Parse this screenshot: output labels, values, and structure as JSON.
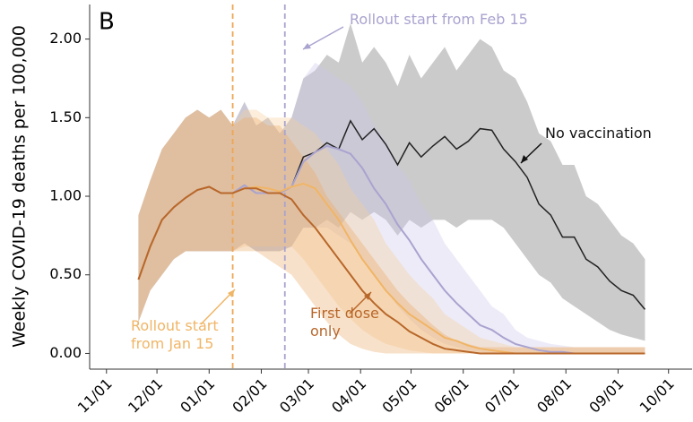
{
  "chart_data": {
    "type": "line",
    "title": "B",
    "y_label": "Weekly COVID-19 deaths per 100,000",
    "x": [
      "11/20",
      "11/27",
      "12/04",
      "12/11",
      "12/18",
      "12/25",
      "01/01",
      "01/08",
      "01/15",
      "01/22",
      "01/29",
      "02/05",
      "02/12",
      "02/19",
      "02/26",
      "03/05",
      "03/12",
      "03/19",
      "03/26",
      "04/02",
      "04/09",
      "04/16",
      "04/23",
      "04/30",
      "05/07",
      "05/14",
      "05/21",
      "05/28",
      "06/04",
      "06/11",
      "06/18",
      "06/25",
      "07/02",
      "07/09",
      "07/16",
      "07/23",
      "07/30",
      "08/06",
      "08/13",
      "08/20",
      "08/27",
      "09/03",
      "09/10",
      "09/17"
    ],
    "xlim": [
      "10/22",
      "10/15"
    ],
    "xticks": [
      "11/01",
      "12/01",
      "01/01",
      "02/01",
      "03/01",
      "04/01",
      "05/01",
      "06/01",
      "07/01",
      "08/01",
      "09/01",
      "10/01"
    ],
    "ylim": [
      -0.1,
      2.22
    ],
    "yticks": [
      {
        "value": 0,
        "label": "0.00"
      },
      {
        "value": 0.5,
        "label": "0.50"
      },
      {
        "value": 1,
        "label": "1.00"
      },
      {
        "value": 1.5,
        "label": "1.50"
      },
      {
        "value": 2,
        "label": "2.00"
      }
    ],
    "vlines": [
      {
        "x": "01/15",
        "color": "#eda655"
      },
      {
        "x": "02/15",
        "color": "#a9a3cf"
      }
    ],
    "series": [
      {
        "name": "No vaccination",
        "color": "#222222",
        "band_color": "#8c8c8c",
        "values": [
          0.47,
          0.68,
          0.85,
          0.93,
          0.99,
          1.04,
          1.06,
          1.02,
          1.02,
          1.07,
          1.02,
          1.02,
          1.02,
          1.06,
          1.25,
          1.28,
          1.34,
          1.3,
          1.48,
          1.36,
          1.43,
          1.33,
          1.2,
          1.34,
          1.25,
          1.32,
          1.38,
          1.3,
          1.35,
          1.43,
          1.42,
          1.3,
          1.22,
          1.12,
          0.95,
          0.88,
          0.74,
          0.74,
          0.6,
          0.55,
          0.46,
          0.4,
          0.37,
          0.28
        ],
        "upper": [
          0.88,
          1.1,
          1.3,
          1.4,
          1.5,
          1.55,
          1.5,
          1.55,
          1.45,
          1.6,
          1.45,
          1.5,
          1.4,
          1.5,
          1.75,
          1.8,
          1.9,
          1.85,
          2.1,
          1.85,
          1.95,
          1.85,
          1.7,
          1.9,
          1.75,
          1.85,
          1.95,
          1.8,
          1.9,
          2.0,
          1.95,
          1.8,
          1.75,
          1.6,
          1.4,
          1.35,
          1.2,
          1.2,
          1.0,
          0.95,
          0.85,
          0.75,
          0.7,
          0.6
        ],
        "lower": [
          0.2,
          0.4,
          0.5,
          0.6,
          0.65,
          0.65,
          0.65,
          0.65,
          0.65,
          0.7,
          0.65,
          0.65,
          0.65,
          0.68,
          0.8,
          0.8,
          0.85,
          0.8,
          0.9,
          0.85,
          0.9,
          0.85,
          0.75,
          0.85,
          0.8,
          0.85,
          0.85,
          0.8,
          0.85,
          0.85,
          0.85,
          0.8,
          0.7,
          0.6,
          0.5,
          0.45,
          0.35,
          0.3,
          0.25,
          0.2,
          0.15,
          0.12,
          0.1,
          0.08
        ]
      },
      {
        "name": "Rollout start from Feb 15",
        "color": "#a9a3cf",
        "band_color": "#cbc6ea",
        "values": [
          0.47,
          0.68,
          0.85,
          0.93,
          0.99,
          1.04,
          1.06,
          1.02,
          1.02,
          1.07,
          1.02,
          1.02,
          1.02,
          1.06,
          1.22,
          1.28,
          1.32,
          1.3,
          1.27,
          1.18,
          1.05,
          0.95,
          0.82,
          0.72,
          0.6,
          0.5,
          0.4,
          0.32,
          0.25,
          0.18,
          0.15,
          0.1,
          0.06,
          0.04,
          0.02,
          0.01,
          0.01,
          0,
          0,
          0,
          0,
          0,
          0,
          0
        ],
        "upper": [
          0.88,
          1.1,
          1.3,
          1.4,
          1.5,
          1.55,
          1.5,
          1.55,
          1.45,
          1.6,
          1.45,
          1.5,
          1.4,
          1.5,
          1.75,
          1.85,
          1.8,
          1.75,
          1.7,
          1.6,
          1.45,
          1.35,
          1.2,
          1.1,
          0.95,
          0.85,
          0.7,
          0.6,
          0.5,
          0.4,
          0.3,
          0.25,
          0.15,
          0.1,
          0.08,
          0.06,
          0.05,
          0.04,
          0.04,
          0.04,
          0.04,
          0.04,
          0.04,
          0.04
        ],
        "lower": [
          0.2,
          0.4,
          0.5,
          0.6,
          0.65,
          0.65,
          0.65,
          0.65,
          0.65,
          0.7,
          0.65,
          0.65,
          0.65,
          0.68,
          0.8,
          0.8,
          0.8,
          0.75,
          0.7,
          0.6,
          0.5,
          0.4,
          0.3,
          0.22,
          0.15,
          0.1,
          0.06,
          0.04,
          0.02,
          0.01,
          0,
          0,
          0,
          0,
          0,
          0,
          0,
          0,
          0,
          0,
          0,
          0,
          0,
          0
        ]
      },
      {
        "name": "Rollout start from Jan 15",
        "color": "#f0b566",
        "band_color": "#f5cf97",
        "values": [
          0.47,
          0.68,
          0.85,
          0.93,
          0.99,
          1.04,
          1.06,
          1.02,
          1.02,
          1.05,
          1.06,
          1.05,
          1.03,
          1.06,
          1.08,
          1.05,
          0.95,
          0.85,
          0.72,
          0.6,
          0.5,
          0.4,
          0.32,
          0.25,
          0.2,
          0.15,
          0.1,
          0.08,
          0.05,
          0.03,
          0.02,
          0.01,
          0,
          0,
          0,
          0,
          0,
          0,
          0,
          0,
          0,
          0,
          0,
          0
        ],
        "upper": [
          0.88,
          1.1,
          1.3,
          1.4,
          1.5,
          1.55,
          1.5,
          1.55,
          1.45,
          1.55,
          1.55,
          1.5,
          1.5,
          1.5,
          1.45,
          1.4,
          1.3,
          1.2,
          1.05,
          0.95,
          0.85,
          0.7,
          0.6,
          0.5,
          0.42,
          0.35,
          0.25,
          0.2,
          0.15,
          0.1,
          0.08,
          0.06,
          0.04,
          0.04,
          0.04,
          0.04,
          0.04,
          0.04,
          0.04,
          0.04,
          0.04,
          0.04,
          0.04,
          0.04
        ],
        "lower": [
          0.2,
          0.4,
          0.5,
          0.6,
          0.65,
          0.65,
          0.65,
          0.65,
          0.65,
          0.68,
          0.68,
          0.68,
          0.68,
          0.68,
          0.6,
          0.5,
          0.4,
          0.3,
          0.22,
          0.15,
          0.1,
          0.06,
          0.04,
          0.02,
          0.01,
          0,
          0,
          0,
          0,
          0,
          0,
          0,
          0,
          0,
          0,
          0,
          0,
          0,
          0,
          0,
          0,
          0,
          0,
          0
        ]
      },
      {
        "name": "First dose only",
        "color": "#b8672a",
        "band_color": "#eba867",
        "values": [
          0.47,
          0.68,
          0.85,
          0.93,
          0.99,
          1.04,
          1.06,
          1.02,
          1.02,
          1.05,
          1.05,
          1.02,
          1.02,
          0.98,
          0.88,
          0.8,
          0.7,
          0.6,
          0.5,
          0.4,
          0.32,
          0.25,
          0.2,
          0.14,
          0.1,
          0.06,
          0.03,
          0.02,
          0.01,
          0,
          0,
          0,
          0,
          0,
          0,
          0,
          0,
          0,
          0,
          0,
          0,
          0,
          0,
          0
        ],
        "upper": [
          0.88,
          1.1,
          1.3,
          1.4,
          1.5,
          1.55,
          1.5,
          1.55,
          1.45,
          1.5,
          1.5,
          1.45,
          1.45,
          1.35,
          1.25,
          1.15,
          1.0,
          0.9,
          0.8,
          0.7,
          0.6,
          0.5,
          0.4,
          0.32,
          0.25,
          0.18,
          0.12,
          0.08,
          0.06,
          0.04,
          0.04,
          0.04,
          0.04,
          0.04,
          0.04,
          0.04,
          0.04,
          0.04,
          0.04,
          0.04,
          0.04,
          0.04,
          0.04,
          0.04
        ],
        "lower": [
          0.2,
          0.4,
          0.5,
          0.6,
          0.65,
          0.65,
          0.65,
          0.65,
          0.65,
          0.65,
          0.65,
          0.6,
          0.55,
          0.5,
          0.4,
          0.3,
          0.2,
          0.12,
          0.06,
          0.03,
          0.01,
          0,
          0,
          0,
          0,
          0,
          0,
          0,
          0,
          0,
          0,
          0,
          0,
          0,
          0,
          0,
          0,
          0,
          0,
          0,
          0,
          0,
          0,
          0
        ]
      }
    ]
  }
}
